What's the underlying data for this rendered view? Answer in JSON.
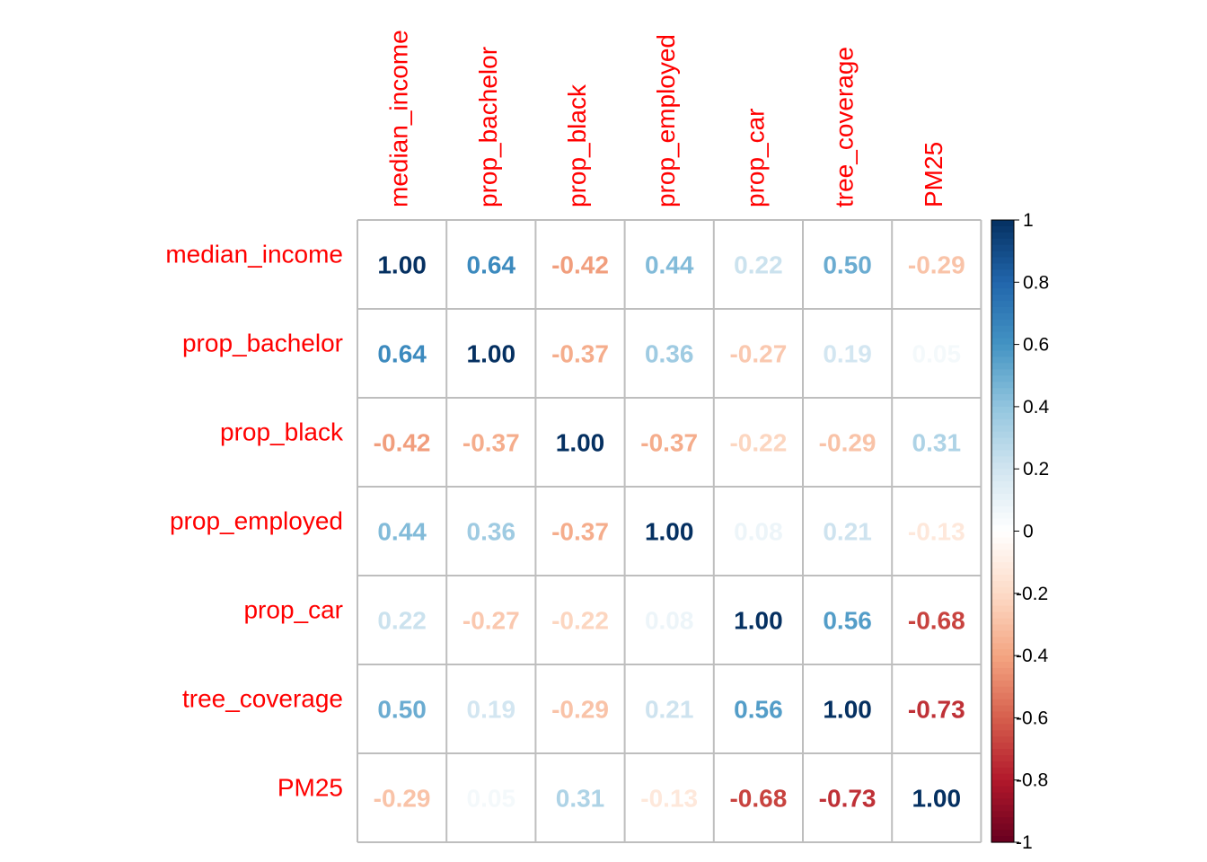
{
  "chart_data": {
    "type": "heatmap",
    "variables": [
      "median_income",
      "prop_bachelor",
      "prop_black",
      "prop_employed",
      "prop_car",
      "tree_coverage",
      "PM25"
    ],
    "matrix": [
      [
        "1.00",
        "0.64",
        "-0.42",
        "0.44",
        "0.22",
        "0.50",
        "-0.29"
      ],
      [
        "0.64",
        "1.00",
        "-0.37",
        "0.36",
        "-0.27",
        "0.19",
        "0.05"
      ],
      [
        "-0.42",
        "-0.37",
        "1.00",
        "-0.37",
        "-0.22",
        "-0.29",
        "0.31"
      ],
      [
        "0.44",
        "0.36",
        "-0.37",
        "1.00",
        "0.08",
        "0.21",
        "-0.13"
      ],
      [
        "0.22",
        "-0.27",
        "-0.22",
        "0.08",
        "1.00",
        "0.56",
        "-0.68"
      ],
      [
        "0.50",
        "0.19",
        "-0.29",
        "0.21",
        "0.56",
        "1.00",
        "-0.73"
      ],
      [
        "-0.29",
        "0.05",
        "0.31",
        "-0.13",
        "-0.68",
        "-0.73",
        "1.00"
      ]
    ],
    "colorbar": {
      "range": [
        -1,
        1
      ],
      "ticks": [
        "1",
        "0.8",
        "0.6",
        "0.4",
        "0.2",
        "0",
        "-0.2",
        "-0.4",
        "-0.6",
        "-0.8",
        "-1"
      ],
      "stops": [
        "#67001F",
        "#B2182B",
        "#D6604D",
        "#F4A582",
        "#FDDBC7",
        "#FFFFFF",
        "#D1E5F0",
        "#92C5DE",
        "#4393C3",
        "#2166AC",
        "#053061"
      ]
    },
    "label_color": "#ff0000",
    "grid_color": "#bebebe"
  }
}
